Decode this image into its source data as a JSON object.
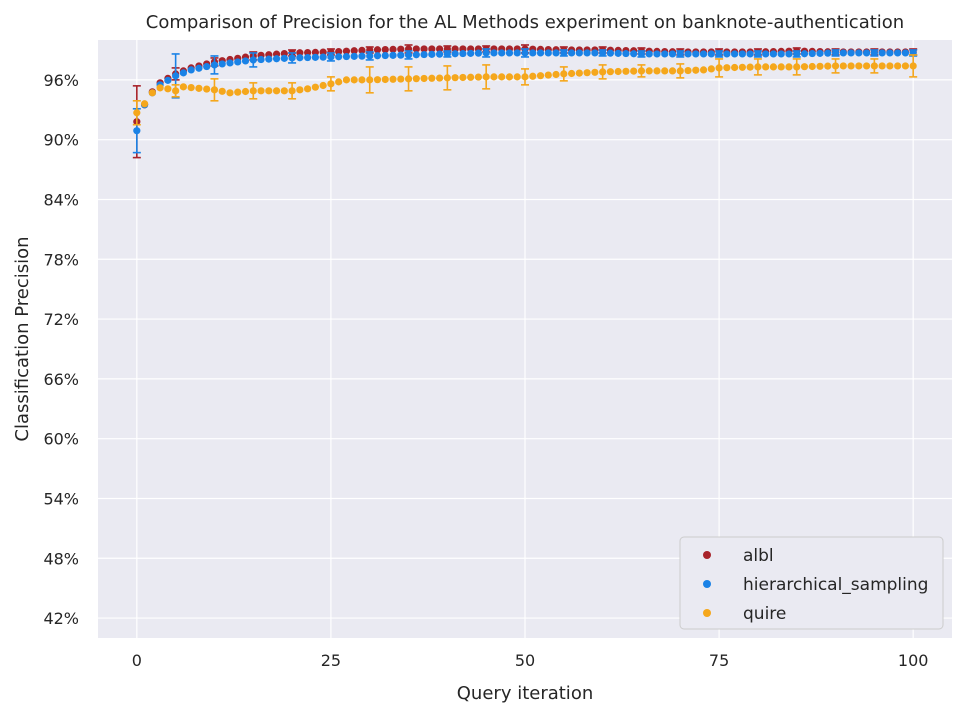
{
  "chart_data": {
    "type": "scatter",
    "title": "Comparison of Precision for the AL Methods experiment on banknote-authentication",
    "xlabel": "Query iteration",
    "ylabel": "Classification Precision",
    "xlim": [
      -5,
      105
    ],
    "ylim": [
      0.4,
      1.0
    ],
    "x_ticks": [
      0,
      25,
      50,
      75,
      100
    ],
    "x_tick_labels": [
      "0",
      "25",
      "50",
      "75",
      "100"
    ],
    "y_ticks": [
      0.42,
      0.48,
      0.54,
      0.6,
      0.66,
      0.72,
      0.78,
      0.84,
      0.9,
      0.96
    ],
    "y_tick_labels": [
      "42%",
      "48%",
      "54%",
      "60%",
      "66%",
      "72%",
      "78%",
      "84%",
      "90%",
      "96%"
    ],
    "grid": true,
    "legend_position": "bottom-right",
    "error_bar_every": 5,
    "series": [
      {
        "name": "albl",
        "color": "#a8232a",
        "anchors": [
          [
            0,
            0.918
          ],
          [
            1,
            0.935
          ],
          [
            2,
            0.948
          ],
          [
            3,
            0.957
          ],
          [
            5,
            0.966
          ],
          [
            7,
            0.972
          ],
          [
            10,
            0.978
          ],
          [
            15,
            0.984
          ],
          [
            20,
            0.987
          ],
          [
            25,
            0.988
          ],
          [
            30,
            0.99
          ],
          [
            35,
            0.991
          ],
          [
            40,
            0.991
          ],
          [
            45,
            0.991
          ],
          [
            50,
            0.991
          ],
          [
            55,
            0.99
          ],
          [
            60,
            0.99
          ],
          [
            65,
            0.989
          ],
          [
            70,
            0.988
          ],
          [
            75,
            0.988
          ],
          [
            80,
            0.988
          ],
          [
            85,
            0.989
          ],
          [
            90,
            0.988
          ],
          [
            95,
            0.988
          ],
          [
            100,
            0.988
          ]
        ],
        "error": [
          [
            0,
            0.036
          ],
          [
            5,
            0.006
          ],
          [
            10,
            0.004
          ],
          [
            15,
            0.004
          ],
          [
            20,
            0.003
          ],
          [
            25,
            0.003
          ],
          [
            30,
            0.003
          ],
          [
            35,
            0.004
          ],
          [
            40,
            0.003
          ],
          [
            45,
            0.003
          ],
          [
            50,
            0.004
          ],
          [
            55,
            0.003
          ],
          [
            60,
            0.003
          ],
          [
            65,
            0.003
          ],
          [
            70,
            0.003
          ],
          [
            75,
            0.003
          ],
          [
            80,
            0.003
          ],
          [
            85,
            0.003
          ],
          [
            90,
            0.003
          ],
          [
            95,
            0.003
          ],
          [
            100,
            0.003
          ]
        ]
      },
      {
        "name": "hierarchical_sampling",
        "color": "#1a82e6",
        "anchors": [
          [
            0,
            0.909
          ],
          [
            1,
            0.935
          ],
          [
            2,
            0.947
          ],
          [
            3,
            0.955
          ],
          [
            5,
            0.964
          ],
          [
            7,
            0.97
          ],
          [
            10,
            0.975
          ],
          [
            15,
            0.98
          ],
          [
            20,
            0.982
          ],
          [
            25,
            0.983
          ],
          [
            30,
            0.984
          ],
          [
            35,
            0.985
          ],
          [
            40,
            0.986
          ],
          [
            45,
            0.987
          ],
          [
            50,
            0.987
          ],
          [
            55,
            0.987
          ],
          [
            60,
            0.987
          ],
          [
            65,
            0.986
          ],
          [
            70,
            0.986
          ],
          [
            75,
            0.986
          ],
          [
            80,
            0.986
          ],
          [
            85,
            0.986
          ],
          [
            90,
            0.987
          ],
          [
            95,
            0.987
          ],
          [
            100,
            0.987
          ]
        ],
        "error": [
          [
            0,
            0.022
          ],
          [
            5,
            0.022
          ],
          [
            10,
            0.009
          ],
          [
            15,
            0.007
          ],
          [
            20,
            0.005
          ],
          [
            25,
            0.004
          ],
          [
            30,
            0.004
          ],
          [
            35,
            0.004
          ],
          [
            40,
            0.003
          ],
          [
            45,
            0.004
          ],
          [
            50,
            0.004
          ],
          [
            55,
            0.003
          ],
          [
            60,
            0.003
          ],
          [
            65,
            0.003
          ],
          [
            70,
            0.003
          ],
          [
            75,
            0.003
          ],
          [
            80,
            0.003
          ],
          [
            85,
            0.003
          ],
          [
            90,
            0.003
          ],
          [
            95,
            0.003
          ],
          [
            100,
            0.003
          ]
        ]
      },
      {
        "name": "quire",
        "color": "#f5a71c",
        "anchors": [
          [
            0,
            0.927
          ],
          [
            1,
            0.936
          ],
          [
            2,
            0.947
          ],
          [
            3,
            0.952
          ],
          [
            4,
            0.951
          ],
          [
            5,
            0.949
          ],
          [
            6,
            0.953
          ],
          [
            10,
            0.95
          ],
          [
            12,
            0.947
          ],
          [
            15,
            0.949
          ],
          [
            20,
            0.949
          ],
          [
            22,
            0.951
          ],
          [
            25,
            0.956
          ],
          [
            27,
            0.96
          ],
          [
            30,
            0.96
          ],
          [
            35,
            0.961
          ],
          [
            40,
            0.962
          ],
          [
            45,
            0.963
          ],
          [
            50,
            0.963
          ],
          [
            55,
            0.966
          ],
          [
            60,
            0.968
          ],
          [
            65,
            0.969
          ],
          [
            70,
            0.969
          ],
          [
            73,
            0.97
          ],
          [
            75,
            0.972
          ],
          [
            80,
            0.973
          ],
          [
            85,
            0.973
          ],
          [
            90,
            0.974
          ],
          [
            95,
            0.974
          ],
          [
            100,
            0.974
          ]
        ],
        "error": [
          [
            0,
            0.012
          ],
          [
            5,
            0.006
          ],
          [
            10,
            0.011
          ],
          [
            15,
            0.008
          ],
          [
            20,
            0.008
          ],
          [
            25,
            0.007
          ],
          [
            30,
            0.013
          ],
          [
            35,
            0.012
          ],
          [
            40,
            0.012
          ],
          [
            45,
            0.012
          ],
          [
            50,
            0.008
          ],
          [
            55,
            0.007
          ],
          [
            60,
            0.007
          ],
          [
            65,
            0.006
          ],
          [
            70,
            0.007
          ],
          [
            75,
            0.009
          ],
          [
            80,
            0.008
          ],
          [
            85,
            0.008
          ],
          [
            90,
            0.007
          ],
          [
            95,
            0.007
          ],
          [
            100,
            0.011
          ]
        ]
      }
    ]
  }
}
